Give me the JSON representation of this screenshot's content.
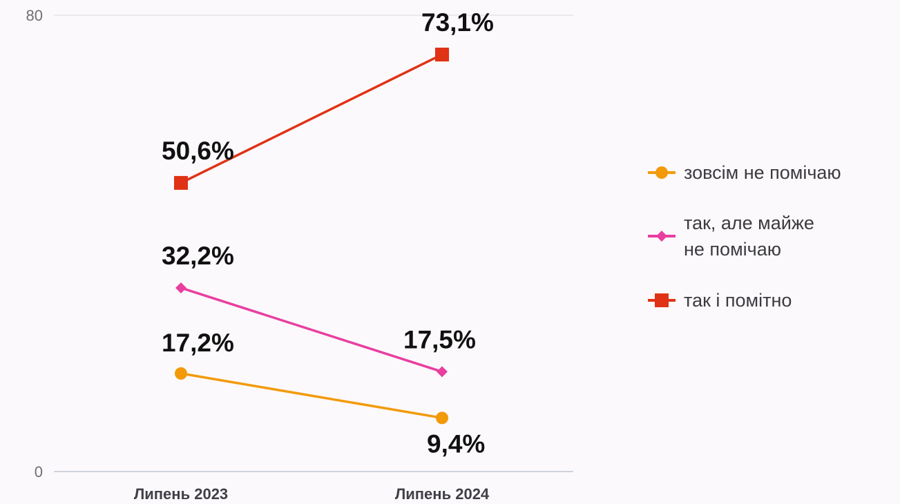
{
  "chart_data": {
    "type": "line",
    "categories": [
      "Липень 2023",
      "Липень 2024"
    ],
    "ylim": [
      0,
      80
    ],
    "y_ticks": [
      "0",
      "80"
    ],
    "grid": true,
    "legend_position": "right",
    "series": [
      {
        "name": "зовсім не помічаю",
        "legend_lines": [
          "зовсім не помічаю"
        ],
        "values": [
          17.2,
          9.4
        ],
        "labels": [
          "17,2%",
          "9,4%"
        ],
        "color": "#f29a0a",
        "marker": "circle"
      },
      {
        "name": "так, але майже не помічаю",
        "legend_lines": [
          "так, але майже",
          "не помічаю"
        ],
        "values": [
          32.2,
          17.5
        ],
        "labels": [
          "32,2%",
          "17,5%"
        ],
        "color": "#e83fa0",
        "marker": "diamond"
      },
      {
        "name": "так і помітно",
        "legend_lines": [
          "так і помітно"
        ],
        "values": [
          50.6,
          73.1
        ],
        "labels": [
          "50,6%",
          "73,1%"
        ],
        "color": "#e03215",
        "marker": "square"
      }
    ]
  }
}
